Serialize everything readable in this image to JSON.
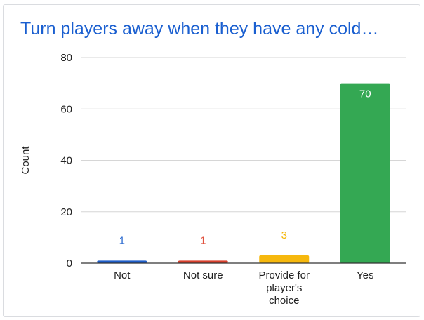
{
  "chart_data": {
    "type": "bar",
    "title": "Turn players away when they have any cold…",
    "xlabel": "",
    "ylabel": "Count",
    "ylim": [
      0,
      80
    ],
    "yticks": [
      0,
      20,
      40,
      60,
      80
    ],
    "grid": true,
    "legend": "none",
    "categories": [
      "Not",
      "Not sure",
      "Provide for player's choice",
      "Yes"
    ],
    "category_lines": [
      [
        "Not"
      ],
      [
        "Not sure"
      ],
      [
        "Provide for",
        "player's",
        "choice"
      ],
      [
        "Yes"
      ]
    ],
    "values": [
      1,
      1,
      3,
      70
    ],
    "data_labels": [
      "1",
      "1",
      "3",
      "70"
    ],
    "colors": [
      "#1f5ec9",
      "#d9402e",
      "#f6b80e",
      "#34a853"
    ],
    "label_colors": [
      "#2a6ad0",
      "#e0523f",
      "#f4b400",
      "#ffffff"
    ]
  }
}
